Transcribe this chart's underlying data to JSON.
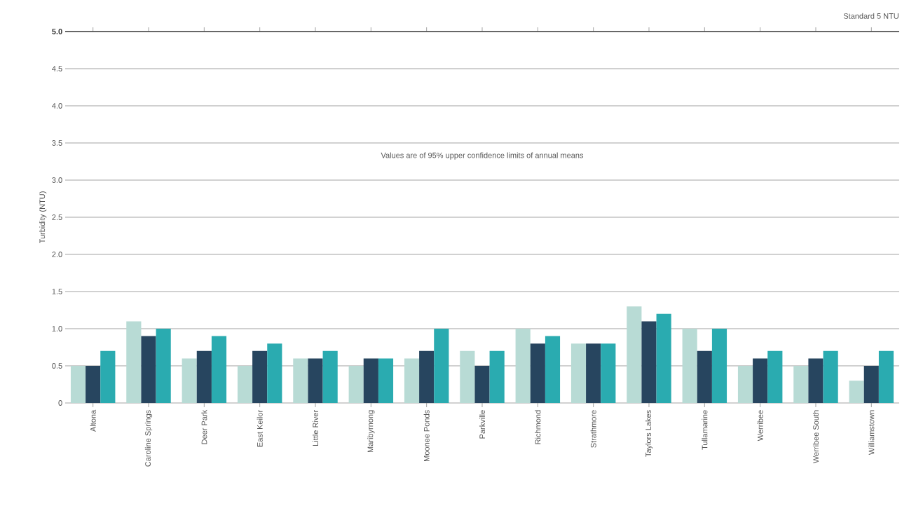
{
  "chart_data": {
    "type": "bar",
    "ylabel": "Turbidity (NTU)",
    "categories": [
      "Altona",
      "Caroline Springs",
      "Deer Park",
      "East Keilor",
      "Little River",
      "Maribyrnong",
      "Moonee Ponds",
      "Parkville",
      "Richmond",
      "Strathmore",
      "Taylors Lakes",
      "Tullamarine",
      "Werribee",
      "Werribee South",
      "Williamstown"
    ],
    "series": [
      {
        "color": "#b8dbd5",
        "values": [
          0.5,
          1.1,
          0.6,
          0.5,
          0.6,
          0.5,
          0.6,
          0.7,
          1.0,
          0.8,
          1.3,
          1.0,
          0.5,
          0.5,
          0.3
        ]
      },
      {
        "color": "#27455f",
        "values": [
          0.5,
          0.9,
          0.7,
          0.7,
          0.6,
          0.6,
          0.7,
          0.5,
          0.8,
          0.8,
          1.1,
          0.7,
          0.6,
          0.6,
          0.5
        ]
      },
      {
        "color": "#2aabb0",
        "values": [
          0.7,
          1.0,
          0.9,
          0.8,
          0.7,
          0.6,
          1.0,
          0.7,
          0.9,
          0.8,
          1.2,
          1.0,
          0.7,
          0.7,
          0.7
        ]
      }
    ],
    "ylim": [
      0,
      5
    ],
    "yticks": [
      0,
      {
        "value": 0.5,
        "label": "0.5"
      },
      {
        "value": 1,
        "label": "1.0"
      },
      {
        "value": 1.5,
        "label": "1.5"
      },
      {
        "value": 2,
        "label": "2.0"
      },
      {
        "value": 2.5,
        "label": "2.5"
      },
      {
        "value": 3,
        "label": "3.0"
      },
      {
        "value": 3.5,
        "label": "3.5"
      },
      {
        "value": 4,
        "label": "4.0"
      },
      {
        "value": 4.5,
        "label": "4.5"
      },
      {
        "value": 5,
        "label": "5.0"
      }
    ],
    "grid": "y",
    "ref_lines": [
      {
        "axis": "y",
        "value": 5,
        "label": "Standard   5 NTU",
        "color": "#444444"
      }
    ],
    "annotations": [
      "Values are of 95% upper confidence limits of annual means"
    ]
  }
}
